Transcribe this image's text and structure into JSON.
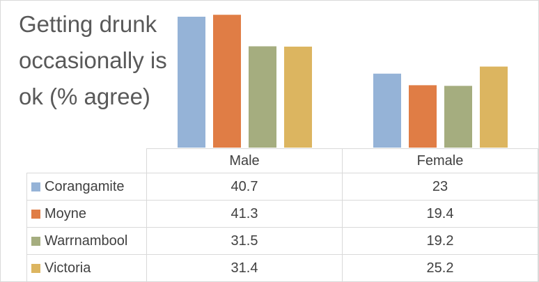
{
  "chart_data": {
    "type": "bar",
    "title": "Getting drunk occasionally is ok (% agree)",
    "categories": [
      "Male",
      "Female"
    ],
    "series": [
      {
        "name": "Corangamite",
        "values": [
          40.7,
          23
        ],
        "labels": [
          "40.7",
          "23"
        ],
        "color": "#95b3d7"
      },
      {
        "name": "Moyne",
        "values": [
          41.3,
          19.4
        ],
        "labels": [
          "41.3",
          "19.4"
        ],
        "color": "#e07d45"
      },
      {
        "name": "Warrnambool",
        "values": [
          31.5,
          19.2
        ],
        "labels": [
          "31.5",
          "19.2"
        ],
        "color": "#a5ad7f"
      },
      {
        "name": "Victoria",
        "values": [
          31.4,
          25.2
        ],
        "labels": [
          "31.4",
          "25.2"
        ],
        "color": "#dcb560"
      }
    ],
    "ylim": [
      0,
      42
    ],
    "grid": false,
    "legend": "data-table"
  }
}
